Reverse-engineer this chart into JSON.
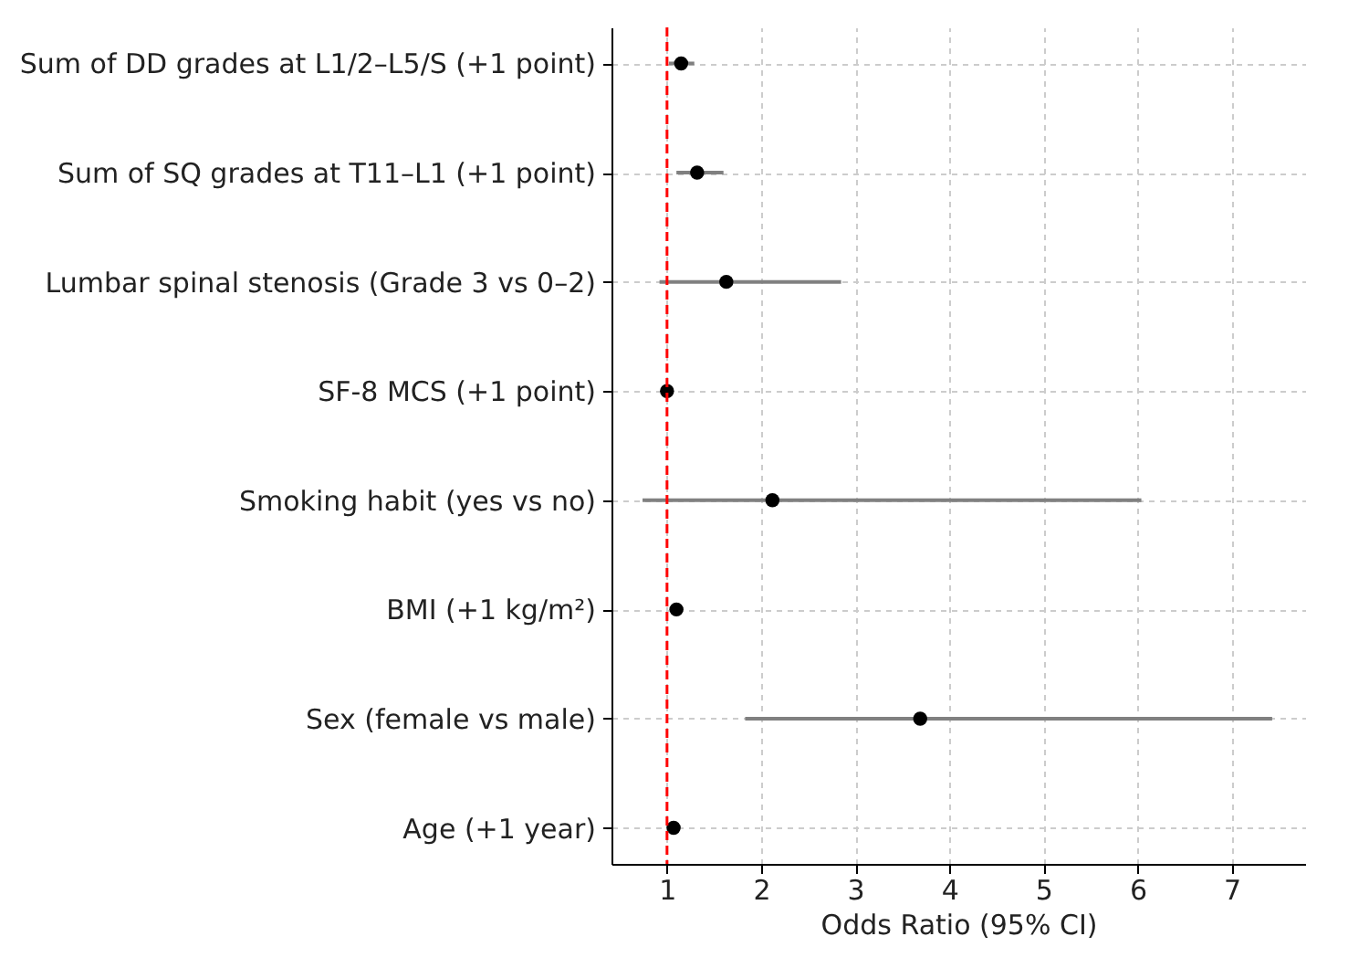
{
  "chart_data": {
    "type": "scatter",
    "orientation": "horizontal",
    "categories": [
      "Sum of DD grades at L1/2–L5/S (+1 point)",
      "Sum of SQ grades at T11–L1 (+1 point)",
      "Lumbar spinal stenosis (Grade 3 vs 0–2)",
      "SF-8 MCS (+1 point)",
      "Smoking habit (yes vs no)",
      "BMI (+1 kg/m²)",
      "Sex (female vs male)",
      "Age (+1 year)"
    ],
    "series": [
      {
        "color": "#000000",
        "values": [
          1.15,
          1.32,
          1.63,
          1.0,
          2.12,
          1.1,
          3.69,
          1.07
        ],
        "errors": [
          [
            1.02,
            1.29
          ],
          [
            1.1,
            1.6
          ],
          [
            0.92,
            2.85
          ],
          null,
          [
            0.74,
            6.04
          ],
          null,
          [
            1.83,
            7.43
          ],
          null
        ]
      }
    ],
    "xlabel": "Odds Ratio (95% CI)",
    "xlim": [
      0.41,
      7.78
    ],
    "xticks": [
      1,
      2,
      3,
      4,
      5,
      6,
      7
    ],
    "ref_lines": [
      {
        "axis": "x",
        "value": 1,
        "color": "#ff0000",
        "line_style": "dashed"
      }
    ],
    "grid": true,
    "marker": "circle"
  }
}
